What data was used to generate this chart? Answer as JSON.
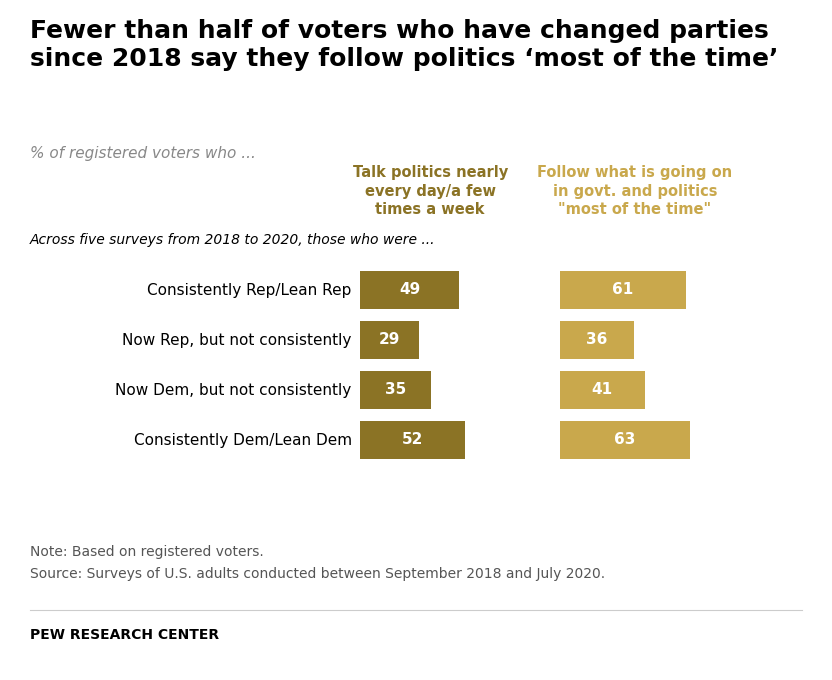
{
  "title": "Fewer than half of voters who have changed parties\nsince 2018 say they follow politics ‘most of the time’",
  "subtitle": "% of registered voters who ...",
  "col1_header": "Talk politics nearly\nevery day/a few\ntimes a week",
  "col2_header": "Follow what is going on\nin govt. and politics\n\"most of the time\"",
  "section_label": "Across five surveys from 2018 to 2020, those who were ...",
  "categories": [
    "Consistently Rep/Lean Rep",
    "Now Rep, but not consistently",
    "Now Dem, but not consistently",
    "Consistently Dem/Lean Dem"
  ],
  "col1_values": [
    49,
    29,
    35,
    52
  ],
  "col2_values": [
    61,
    36,
    41,
    63
  ],
  "col1_color": "#8B7325",
  "col2_color": "#C9A84C",
  "note": "Note: Based on registered voters.",
  "source": "Source: Surveys of U.S. adults conducted between September 2018 and July 2020.",
  "footer": "PEW RESEARCH CENTER",
  "background_color": "#FFFFFF",
  "title_fontsize": 18,
  "subtitle_fontsize": 11,
  "category_fontsize": 11,
  "bar_label_fontsize": 11,
  "note_fontsize": 10,
  "header_fontsize": 10.5
}
